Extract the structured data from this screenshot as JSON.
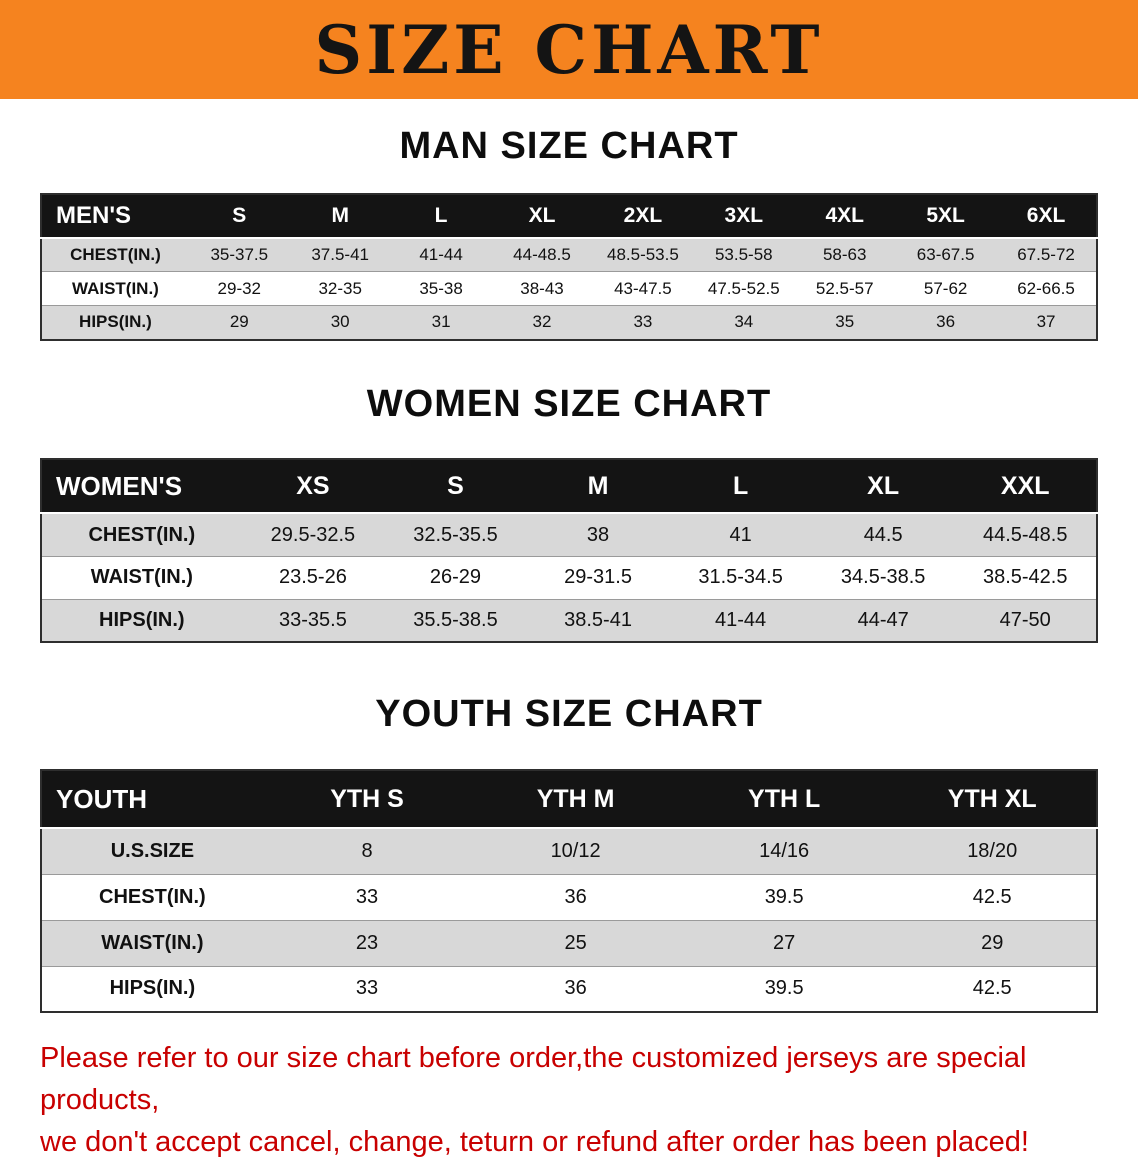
{
  "banner": {
    "title": "SIZE CHART",
    "bg_color": "#F5831F"
  },
  "colors": {
    "header_bg": "#141414",
    "stripe": "#d8d8d8",
    "disclaimer_red": "#C80000"
  },
  "sections": [
    {
      "id": "men",
      "heading": "MAN SIZE CHART",
      "corner_label": "MEN'S",
      "columns": [
        "S",
        "M",
        "L",
        "XL",
        "2XL",
        "3XL",
        "4XL",
        "5XL",
        "6XL"
      ],
      "rows": [
        {
          "label": "CHEST(IN.)",
          "values": [
            "35-37.5",
            "37.5-41",
            "41-44",
            "44-48.5",
            "48.5-53.5",
            "53.5-58",
            "58-63",
            "63-67.5",
            "67.5-72"
          ]
        },
        {
          "label": "WAIST(IN.)",
          "values": [
            "29-32",
            "32-35",
            "35-38",
            "38-43",
            "43-47.5",
            "47.5-52.5",
            "52.5-57",
            "57-62",
            "62-66.5"
          ]
        },
        {
          "label": "HIPS(IN.)",
          "values": [
            "29",
            "30",
            "31",
            "32",
            "33",
            "34",
            "35",
            "36",
            "37"
          ]
        }
      ]
    },
    {
      "id": "women",
      "heading": "WOMEN SIZE CHART",
      "corner_label": "WOMEN'S",
      "columns": [
        "XS",
        "S",
        "M",
        "L",
        "XL",
        "XXL"
      ],
      "rows": [
        {
          "label": "CHEST(IN.)",
          "values": [
            "29.5-32.5",
            "32.5-35.5",
            "38",
            "41",
            "44.5",
            "44.5-48.5"
          ]
        },
        {
          "label": "WAIST(IN.)",
          "values": [
            "23.5-26",
            "26-29",
            "29-31.5",
            "31.5-34.5",
            "34.5-38.5",
            "38.5-42.5"
          ]
        },
        {
          "label": "HIPS(IN.)",
          "values": [
            "33-35.5",
            "35.5-38.5",
            "38.5-41",
            "41-44",
            "44-47",
            "47-50"
          ]
        }
      ]
    },
    {
      "id": "youth",
      "heading": "YOUTH SIZE CHART",
      "corner_label": "YOUTH",
      "columns": [
        "YTH S",
        "YTH M",
        "YTH L",
        "YTH XL"
      ],
      "rows": [
        {
          "label": "U.S.SIZE",
          "values": [
            "8",
            "10/12",
            "14/16",
            "18/20"
          ]
        },
        {
          "label": "CHEST(IN.)",
          "values": [
            "33",
            "36",
            "39.5",
            "42.5"
          ]
        },
        {
          "label": "WAIST(IN.)",
          "values": [
            "23",
            "25",
            "27",
            "29"
          ]
        },
        {
          "label": "HIPS(IN.)",
          "values": [
            "33",
            "36",
            "39.5",
            "42.5"
          ]
        }
      ]
    }
  ],
  "disclaimer": {
    "line1": "Please refer to our size chart before order,the customized jerseys are special products,",
    "line2": "we don't accept cancel, change, teturn or refund after order has been placed!"
  }
}
